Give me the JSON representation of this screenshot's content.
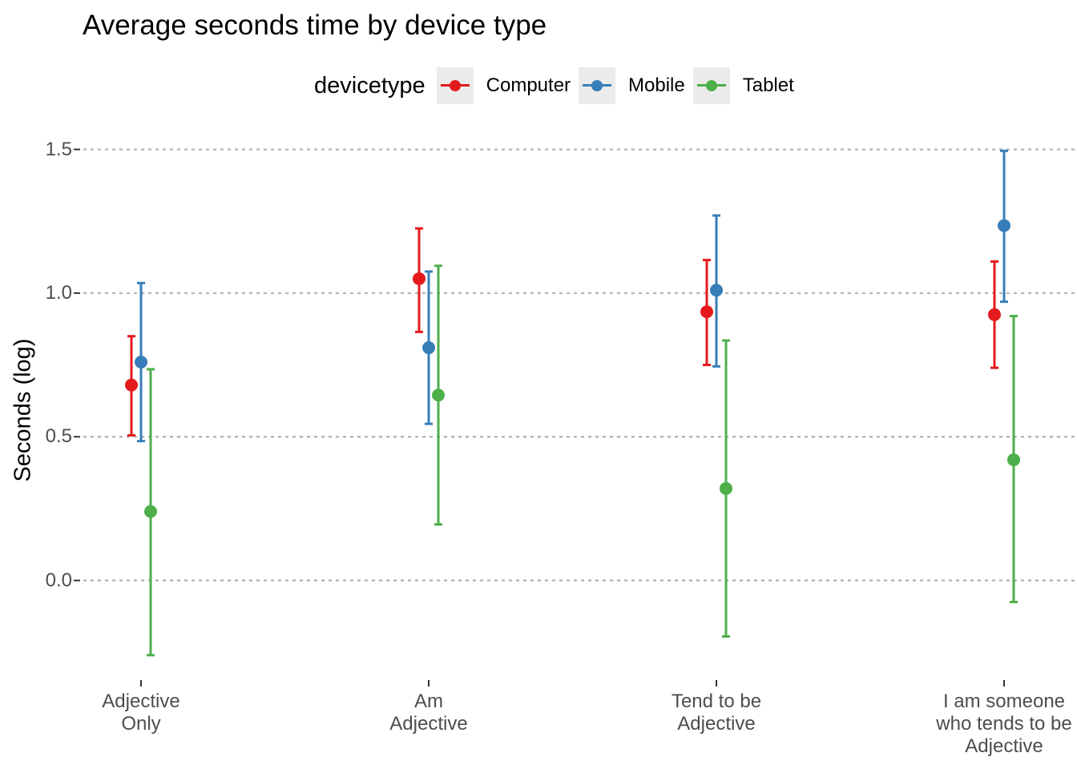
{
  "chart_data": {
    "type": "errorbar",
    "title": "Average seconds time by device type",
    "xlabel": "",
    "ylabel": "Seconds (log)",
    "legend_title": "devicetype",
    "legend_position": "top",
    "grid": "horizontal major, dotted",
    "ylim": [
      -0.33,
      1.56
    ],
    "yticks": [
      "0.0",
      "0.5",
      "1.0",
      "1.5"
    ],
    "ytick_values": [
      0,
      0.5,
      1.0,
      1.5
    ],
    "categories": [
      "Adjective\nOnly",
      "Am\nAdjective",
      "Tend to be\nAdjective",
      "I am someone\nwho tends to be\nAdjective"
    ],
    "series": [
      {
        "name": "Computer",
        "color": "#e41a1c",
        "values": [
          0.68,
          1.05,
          0.935,
          0.925
        ],
        "lower": [
          0.505,
          0.865,
          0.75,
          0.74
        ],
        "upper": [
          0.85,
          1.225,
          1.115,
          1.11
        ]
      },
      {
        "name": "Mobile",
        "color": "#377eb8",
        "values": [
          0.76,
          0.81,
          1.01,
          1.235
        ],
        "lower": [
          0.485,
          0.545,
          0.745,
          0.97
        ],
        "upper": [
          1.035,
          1.075,
          1.27,
          1.495
        ]
      },
      {
        "name": "Tablet",
        "color": "#4daf4a",
        "values": [
          0.24,
          0.645,
          0.32,
          0.42
        ],
        "lower": [
          -0.26,
          0.195,
          -0.195,
          -0.075
        ],
        "upper": [
          0.735,
          1.095,
          0.835,
          0.92
        ]
      }
    ]
  }
}
